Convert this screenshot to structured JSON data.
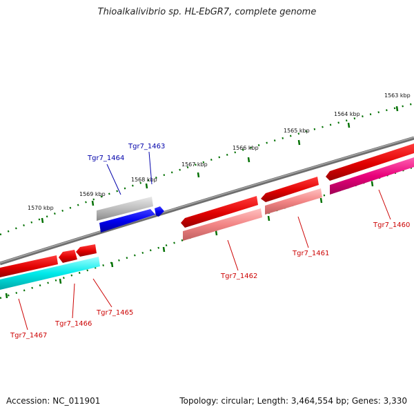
{
  "title": "Thioalkalivibrio sp. HL-EbGR7, complete genome",
  "footer": {
    "accession": "Accession: NC_011901",
    "summary": "Topology: circular; Length: 3,464,554 bp; Genes: 3,330"
  },
  "scale_labels": [
    "1563 kbp",
    "1564 kbp",
    "1565 kbp",
    "1566 kbp",
    "1567 kbp",
    "1568 kbp",
    "1569 kbp",
    "1570 kbp"
  ],
  "genes": [
    {
      "label": "Tgr7_1460",
      "strand": "forward",
      "color": "#e8007a"
    },
    {
      "label": "Tgr7_1461",
      "strand": "forward",
      "color": "#f08080"
    },
    {
      "label": "Tgr7_1462",
      "strand": "forward",
      "color": "#f08080"
    },
    {
      "label": "Tgr7_1463",
      "strand": "forward",
      "color": "#0000ff"
    },
    {
      "label": "Tgr7_1464",
      "strand": "forward",
      "color": "#b0b0b0"
    },
    {
      "label": "Tgr7_1465",
      "strand": "reverse",
      "color": "#ff0000"
    },
    {
      "label": "Tgr7_1466",
      "strand": "reverse",
      "color": "#ff0000"
    },
    {
      "label": "Tgr7_1467",
      "strand": "reverse",
      "color": "#00e5e5"
    }
  ],
  "colors": {
    "backbone": "#808080",
    "scale": "#007000",
    "red_label": "#cc0000",
    "blue_label": "#0000aa"
  }
}
